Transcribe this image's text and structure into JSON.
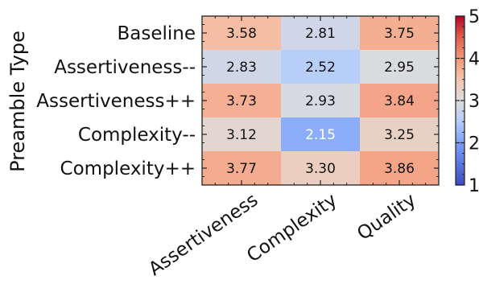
{
  "chart_data": {
    "type": "heatmap",
    "ylabel": "Preamble Type",
    "xlabel": "",
    "rows": [
      "Baseline",
      "Assertiveness--",
      "Assertiveness++",
      "Complexity--",
      "Complexity++"
    ],
    "columns": [
      "Assertiveness",
      "Complexity",
      "Quality"
    ],
    "values": [
      [
        3.58,
        2.81,
        3.75
      ],
      [
        2.83,
        2.52,
        2.95
      ],
      [
        3.73,
        2.93,
        3.84
      ],
      [
        3.12,
        2.15,
        3.25
      ],
      [
        3.77,
        3.3,
        3.86
      ]
    ],
    "value_labels": [
      [
        "3.58",
        "2.81",
        "3.75"
      ],
      [
        "2.83",
        "2.52",
        "2.95"
      ],
      [
        "3.73",
        "2.93",
        "3.84"
      ],
      [
        "3.12",
        "2.15",
        "3.25"
      ],
      [
        "3.77",
        "3.30",
        "3.86"
      ]
    ],
    "colorbar": {
      "range": [
        1,
        5
      ],
      "ticks": [
        "1",
        "2",
        "3",
        "4",
        "5"
      ],
      "colormap": "coolwarm",
      "low_color": "#3b4cc0",
      "mid_color": "#dddddd",
      "high_color": "#b40426"
    },
    "grid": false
  }
}
